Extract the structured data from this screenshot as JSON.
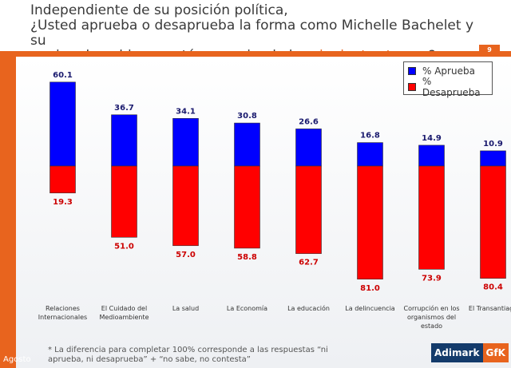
{
  "header": {
    "title_line1": "Independiente de su posición política,",
    "title_line2": "¿Usted aprueba o desaprueba la forma como Michelle Bachelet y su",
    "title_line3_pre": "equipo de gobierno están manejando los ",
    "title_line3_hl": "siguientes temas",
    "title_line3_post": "?",
    "page_number": "9"
  },
  "chart_data": {
    "type": "bar",
    "categories": [
      [
        "Relaciones",
        "Internacionales"
      ],
      [
        "El Cuidado del",
        "Medioambiente"
      ],
      [
        "La salud"
      ],
      [
        "La Economía"
      ],
      [
        "La educación"
      ],
      [
        "La delincuencia"
      ],
      [
        "Corrupción en los",
        "organismos del",
        "estado"
      ],
      [
        "El Transantiago"
      ]
    ],
    "series": [
      {
        "name": "% Aprueba",
        "color": "#0000ff",
        "values": [
          60.1,
          36.7,
          34.1,
          30.8,
          26.6,
          16.8,
          14.9,
          10.9
        ]
      },
      {
        "name": "% Desaprueba",
        "color": "#ff0000",
        "values": [
          19.3,
          51.0,
          57.0,
          58.8,
          62.7,
          81.0,
          73.9,
          80.4
        ]
      }
    ],
    "value_labels": {
      "aprueba": [
        "60.1",
        "36.7",
        "34.1",
        "30.8",
        "26.6",
        "16.8",
        "14.9",
        "10.9"
      ],
      "desaprueba": [
        "19.3",
        "51.0",
        "57.0",
        "58.8",
        "62.7",
        "81.0",
        "73.9",
        "80.4"
      ]
    },
    "legend_position": "top-right",
    "grid": false
  },
  "legend": {
    "aprueba": "% Aprueba",
    "desaprueba": "% Desaprueba"
  },
  "footer": {
    "note_line1": "* La diferencia para completar 100% corresponde a las respuestas “ni",
    "note_line2": "aprueba, ni desaprueba” + “no sabe, no contesta”",
    "month": "Agosto",
    "logo_a": "Adimark",
    "logo_b": "GfK"
  }
}
